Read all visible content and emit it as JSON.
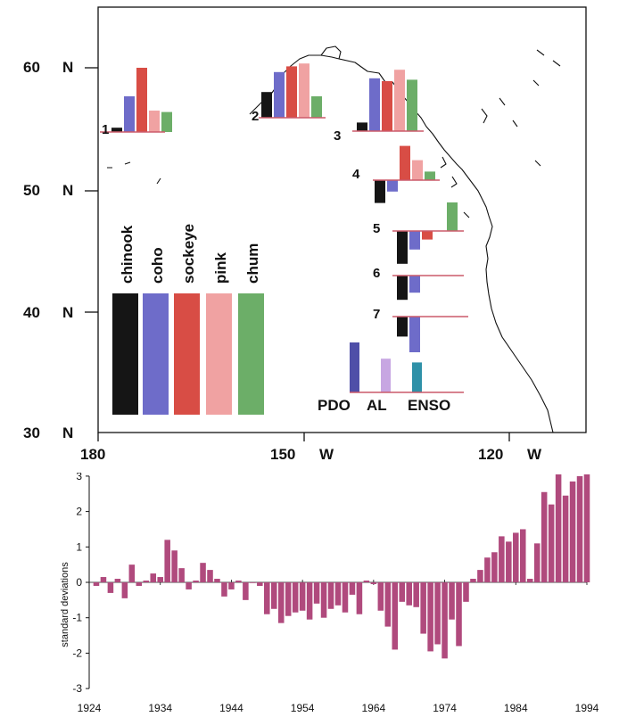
{
  "colors": {
    "chinook": "#151515",
    "coho": "#6e6cc9",
    "sockeye": "#d84d45",
    "pink": "#f0a2a2",
    "chum": "#6cae68",
    "baseline": "#cc5a6a",
    "PDO": "#4f4fa8",
    "AL": "#c7a6e2",
    "ENSO": "#2f91a8",
    "timeseries": "#b04a7d",
    "coast": "#111111"
  },
  "chart_data": [
    {
      "type": "bar",
      "panel": "map",
      "title": "",
      "lat_axis": {
        "labels": [
          "60",
          "50",
          "40",
          "30"
        ],
        "letter": "N",
        "ylim": [
          30,
          65
        ]
      },
      "lon_axis": {
        "labels": [
          "180",
          "150",
          "120"
        ],
        "letter": "W",
        "xlim": [
          180,
          110
        ]
      },
      "species": [
        "chinook",
        "coho",
        "sockeye",
        "pink",
        "chum"
      ],
      "regions": [
        {
          "label": "1",
          "values": [
            0.3,
            2.5,
            4.5,
            1.5,
            1.4
          ]
        },
        {
          "label": "2",
          "values": [
            1.8,
            3.2,
            3.6,
            3.8,
            1.5
          ]
        },
        {
          "label": "3",
          "values": [
            0.6,
            3.7,
            3.5,
            4.3,
            3.6
          ]
        },
        {
          "label": "4",
          "values": [
            -1.6,
            -0.8,
            2.4,
            1.4,
            0.6
          ]
        },
        {
          "label": "5",
          "values": [
            -2.3,
            -1.3,
            -0.6,
            null,
            2.0
          ]
        },
        {
          "label": "6",
          "values": [
            -1.7,
            -1.2,
            null,
            null,
            null
          ]
        },
        {
          "label": "7",
          "values": [
            -1.4,
            -2.5,
            null,
            null,
            null
          ]
        }
      ],
      "climate_indices": {
        "labels": [
          "PDO",
          "AL",
          "ENSO"
        ],
        "values": [
          4.0,
          2.7,
          2.4
        ]
      }
    },
    {
      "type": "bar",
      "panel": "timeseries",
      "title": "",
      "xlabel": "",
      "ylabel": "standard deviations",
      "ylim": [
        -3,
        3
      ],
      "yticks": [
        3,
        2,
        1,
        0,
        -1,
        -2,
        -3
      ],
      "xticks": [
        "1924",
        "1934",
        "1944",
        "1954",
        "1964",
        "1974",
        "1984",
        "1994"
      ],
      "x": [
        1925,
        1926,
        1927,
        1928,
        1929,
        1930,
        1931,
        1932,
        1933,
        1934,
        1935,
        1936,
        1937,
        1938,
        1939,
        1940,
        1941,
        1942,
        1943,
        1944,
        1945,
        1946,
        1947,
        1948,
        1949,
        1950,
        1951,
        1952,
        1953,
        1954,
        1955,
        1956,
        1957,
        1958,
        1959,
        1960,
        1961,
        1962,
        1963,
        1964,
        1965,
        1966,
        1967,
        1968,
        1969,
        1970,
        1971,
        1972,
        1973,
        1974,
        1975,
        1976,
        1977,
        1978,
        1979,
        1980,
        1981,
        1982,
        1983,
        1984,
        1985,
        1986,
        1987,
        1988,
        1989,
        1990,
        1991,
        1992,
        1993,
        1994
      ],
      "values": [
        -0.1,
        0.15,
        -0.3,
        0.1,
        -0.45,
        0.5,
        -0.1,
        0.05,
        0.25,
        0.15,
        1.2,
        0.9,
        0.4,
        -0.2,
        0.05,
        0.55,
        0.35,
        0.1,
        -0.4,
        -0.2,
        0.05,
        -0.5,
        0.0,
        -0.1,
        -0.9,
        -0.75,
        -1.15,
        -0.95,
        -0.85,
        -0.8,
        -1.05,
        -0.6,
        -1.0,
        -0.75,
        -0.65,
        -0.85,
        -0.35,
        -0.9,
        0.05,
        -0.05,
        -0.8,
        -1.25,
        -1.9,
        -0.55,
        -0.65,
        -0.7,
        -1.45,
        -1.95,
        -1.75,
        -2.15,
        -1.05,
        -1.8,
        -0.55,
        0.1,
        0.35,
        0.7,
        0.85,
        1.3,
        1.15,
        1.4,
        1.5,
        0.1,
        1.1,
        2.55,
        2.2,
        3.05,
        2.45,
        2.85,
        3.0,
        3.05
      ]
    }
  ]
}
